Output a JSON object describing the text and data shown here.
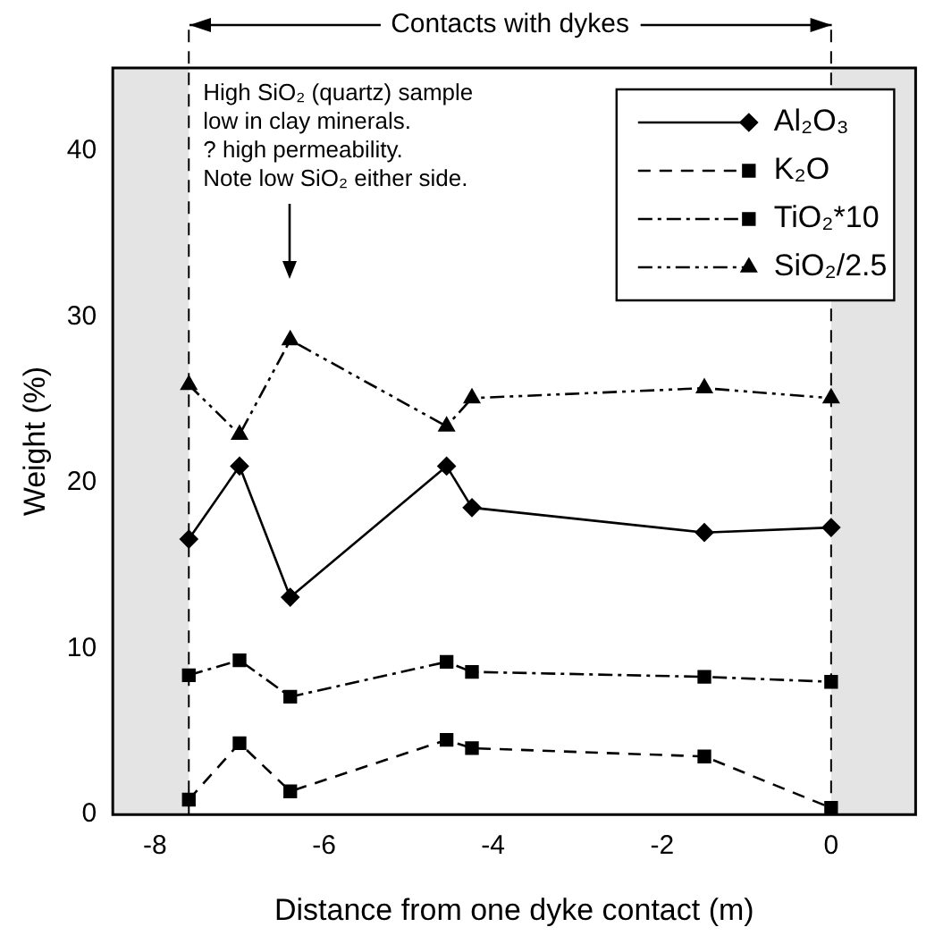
{
  "chart_data": {
    "type": "line",
    "xlabel": "Distance from one dyke contact (m)",
    "ylabel": "Weight (%)",
    "xlim": [
      -8.5,
      1
    ],
    "xticks": [
      -8,
      -6,
      -4,
      -2,
      0
    ],
    "ylim": [
      0,
      45
    ],
    "yticks": [
      0,
      10,
      20,
      30,
      40
    ],
    "legend": "top right",
    "grid": false,
    "series": [
      {
        "name": "Al₂O₃",
        "color": "#000000",
        "marker": "diamond",
        "line_style": "solid",
        "x": [
          -7.6,
          -7.0,
          -6.4,
          -4.55,
          -4.25,
          -1.5,
          0
        ],
        "values": [
          16.6,
          21.0,
          13.1,
          21.0,
          18.5,
          17.0,
          17.3
        ]
      },
      {
        "name": "K₂O",
        "color": "#000000",
        "marker": "square",
        "line_style": "dashed",
        "x": [
          -7.6,
          -7.0,
          -6.4,
          -4.55,
          -4.25,
          -1.5,
          0
        ],
        "values": [
          0.9,
          4.3,
          1.4,
          4.5,
          4.0,
          3.5,
          0.4
        ]
      },
      {
        "name": "TiO₂*10",
        "color": "#000000",
        "marker": "square",
        "line_style": "dashdot",
        "x": [
          -7.6,
          -7.0,
          -6.4,
          -4.55,
          -4.25,
          -1.5,
          0
        ],
        "values": [
          8.4,
          9.3,
          7.1,
          9.2,
          8.6,
          8.3,
          8.0
        ]
      },
      {
        "name": "SiO₂/2.5",
        "color": "#000000",
        "marker": "triangle",
        "line_style": "dashdotdot",
        "x": [
          -7.6,
          -7.0,
          -6.4,
          -4.55,
          -4.25,
          -1.5,
          0
        ],
        "values": [
          25.9,
          22.9,
          28.6,
          23.4,
          25.1,
          25.7,
          25.1
        ]
      }
    ],
    "ref_lines": [
      {
        "axis": "x",
        "value": -7.6,
        "line_style": "dashed"
      },
      {
        "axis": "x",
        "value": 0,
        "line_style": "dashed"
      }
    ],
    "bands": [
      {
        "axis": "x",
        "from": -8.5,
        "to": -7.6,
        "color": "#e4e4e4"
      },
      {
        "axis": "x",
        "from": 0,
        "to": 1,
        "color": "#e4e4e4"
      }
    ],
    "annotations": [
      "Contacts with dykes",
      "High SiO₂ (quartz) sample\nlow in clay minerals.\n? high permeability.\nNote low SiO₂ either side."
    ]
  }
}
